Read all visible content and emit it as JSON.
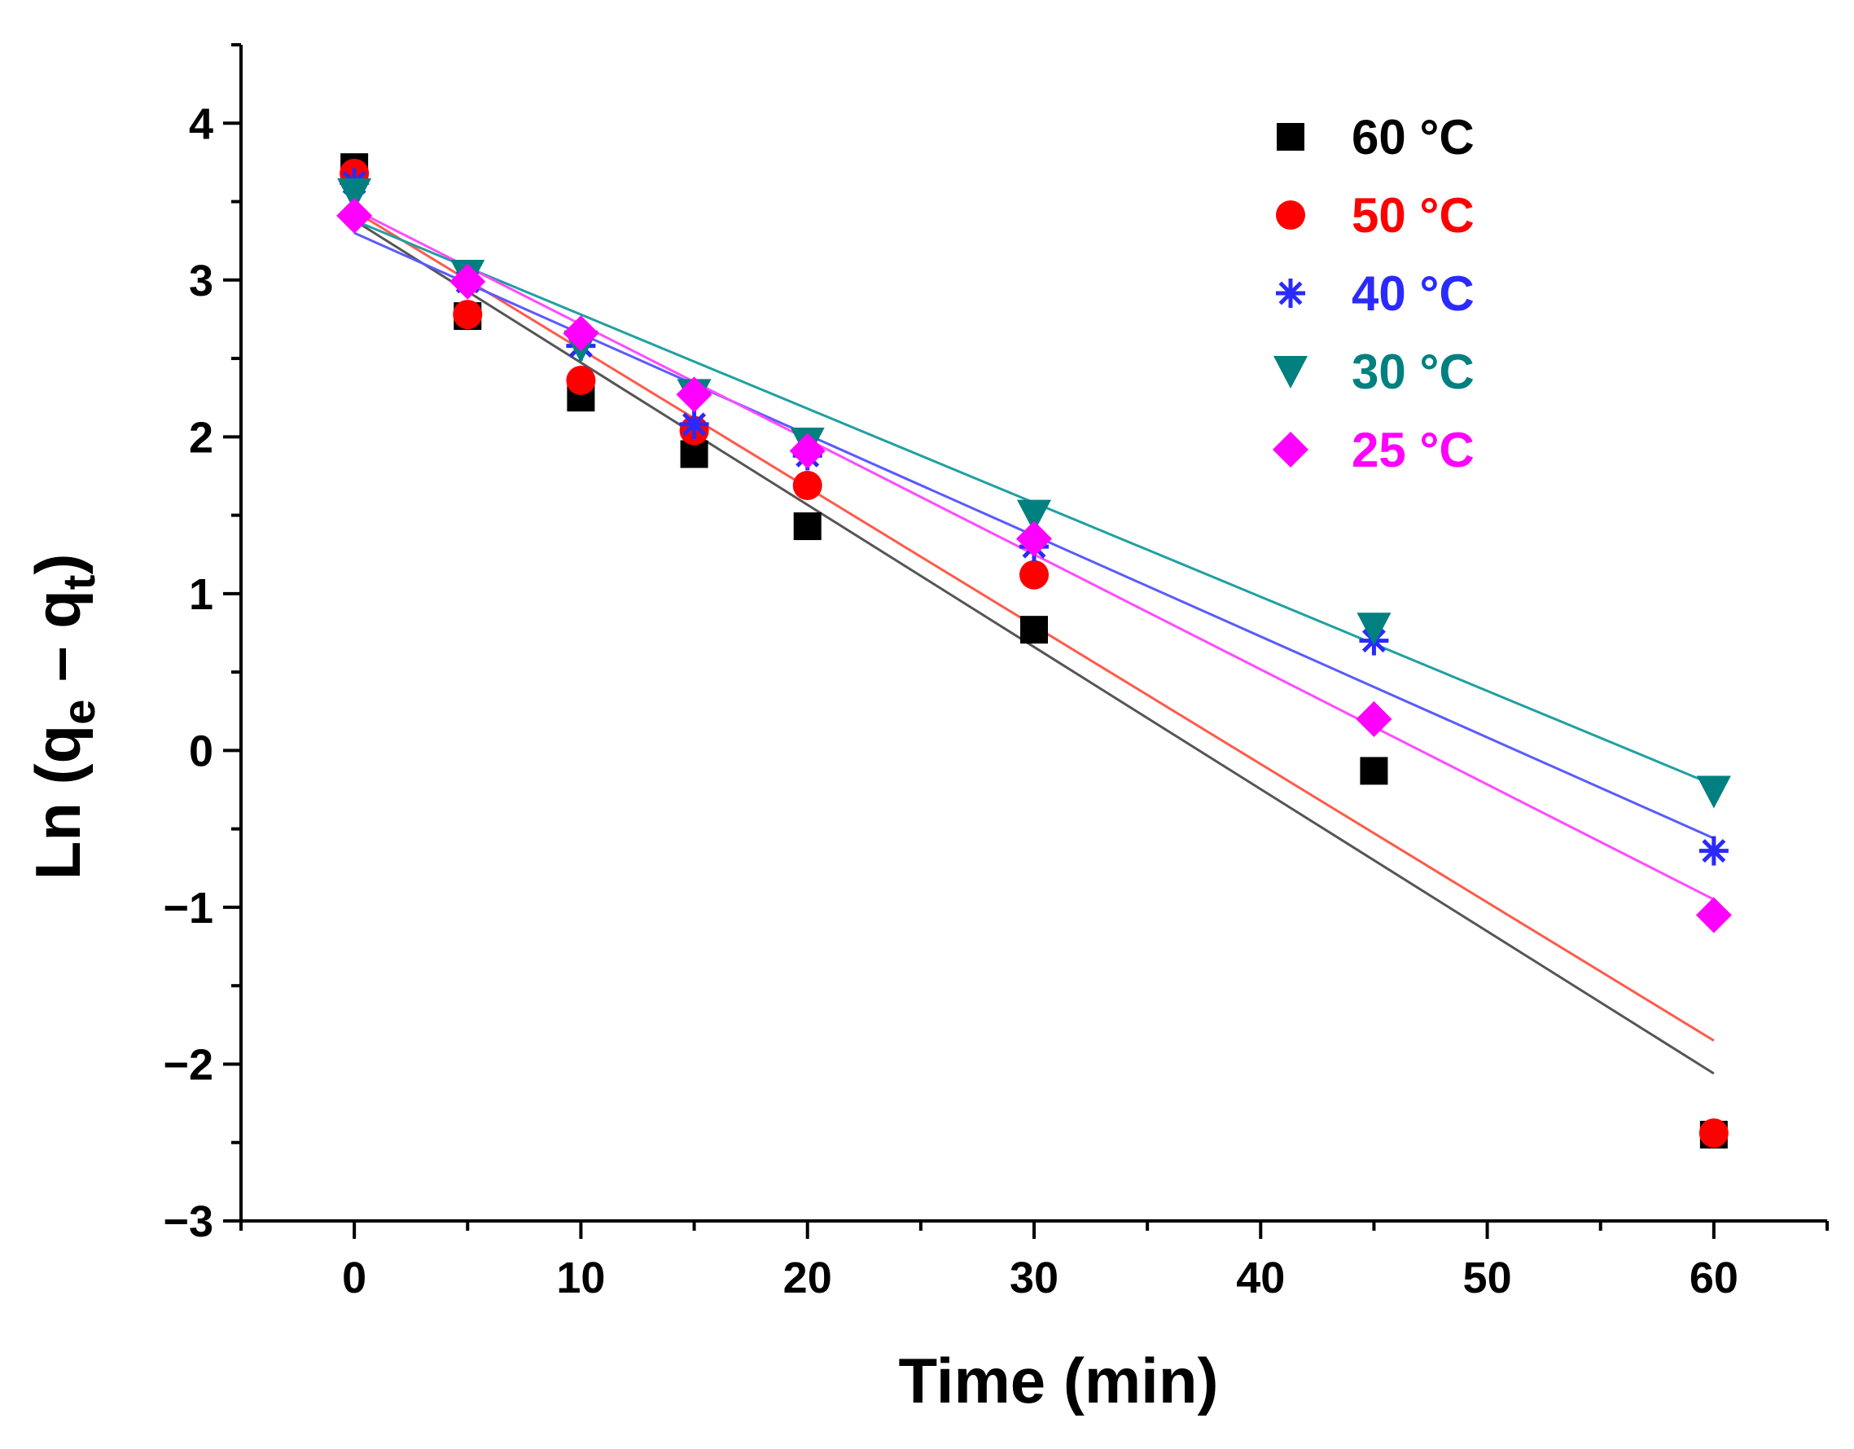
{
  "chart_data": {
    "type": "scatter",
    "title": "",
    "xlabel": "Time (min)",
    "ylabel": {
      "prefix": "Ln (q",
      "sub1": "e",
      "mid": " – q",
      "sub2": "t",
      "suffix": ")"
    },
    "xlim": [
      -5,
      65
    ],
    "ylim": [
      -3,
      4.5
    ],
    "xticks": [
      0,
      10,
      20,
      30,
      40,
      50,
      60
    ],
    "xtick_labels": [
      "0",
      "10",
      "20",
      "30",
      "40",
      "50",
      "60"
    ],
    "yticks": [
      -3,
      -2,
      -1,
      0,
      1,
      2,
      3,
      4
    ],
    "ytick_labels": [
      "−3",
      "−2",
      "−1",
      "0",
      "1",
      "2",
      "3",
      "4"
    ],
    "grid": false,
    "legend_position": "top-right",
    "series": [
      {
        "name": "60 °C",
        "marker": "square",
        "color": "#000000",
        "line_color": "#555555",
        "x": [
          0,
          5,
          10,
          15,
          20,
          30,
          45,
          60
        ],
        "y": [
          3.72,
          2.77,
          2.25,
          1.89,
          1.43,
          0.77,
          -0.13,
          -2.45
        ],
        "fit": {
          "x": [
            0,
            60
          ],
          "y": [
            3.38,
            -2.06
          ]
        }
      },
      {
        "name": "50 °C",
        "marker": "circle",
        "color": "#ff0000",
        "line_color": "#ff5a4a",
        "x": [
          0,
          5,
          10,
          15,
          20,
          30,
          60
        ],
        "y": [
          3.68,
          2.78,
          2.36,
          2.04,
          1.69,
          1.12,
          -2.44
        ],
        "fit": {
          "x": [
            0,
            60
          ],
          "y": [
            3.44,
            -1.85
          ]
        }
      },
      {
        "name": "40 °C",
        "marker": "star",
        "color": "#2a2aff",
        "line_color": "#5a5aff",
        "x": [
          0,
          5,
          10,
          15,
          20,
          30,
          45,
          60
        ],
        "y": [
          3.62,
          2.99,
          2.58,
          2.08,
          1.88,
          1.3,
          0.7,
          -0.64
        ],
        "fit": {
          "x": [
            0,
            60
          ],
          "y": [
            3.3,
            -0.56
          ]
        }
      },
      {
        "name": "30 °C",
        "marker": "triangle-down",
        "color": "#008080",
        "line_color": "#20a0a0",
        "x": [
          0,
          5,
          10,
          15,
          20,
          30,
          45,
          60
        ],
        "y": [
          3.55,
          3.03,
          2.58,
          2.27,
          1.96,
          1.5,
          0.78,
          -0.26
        ],
        "fit": {
          "x": [
            0,
            60
          ],
          "y": [
            3.38,
            -0.22
          ]
        }
      },
      {
        "name": "25 °C",
        "marker": "diamond",
        "color": "#ff00ff",
        "line_color": "#ff4aff",
        "x": [
          0,
          5,
          10,
          15,
          20,
          30,
          45,
          60
        ],
        "y": [
          3.41,
          2.99,
          2.66,
          2.27,
          1.91,
          1.35,
          0.2,
          -1.05
        ],
        "fit": {
          "x": [
            0,
            60
          ],
          "y": [
            3.45,
            -0.95
          ]
        }
      }
    ]
  }
}
